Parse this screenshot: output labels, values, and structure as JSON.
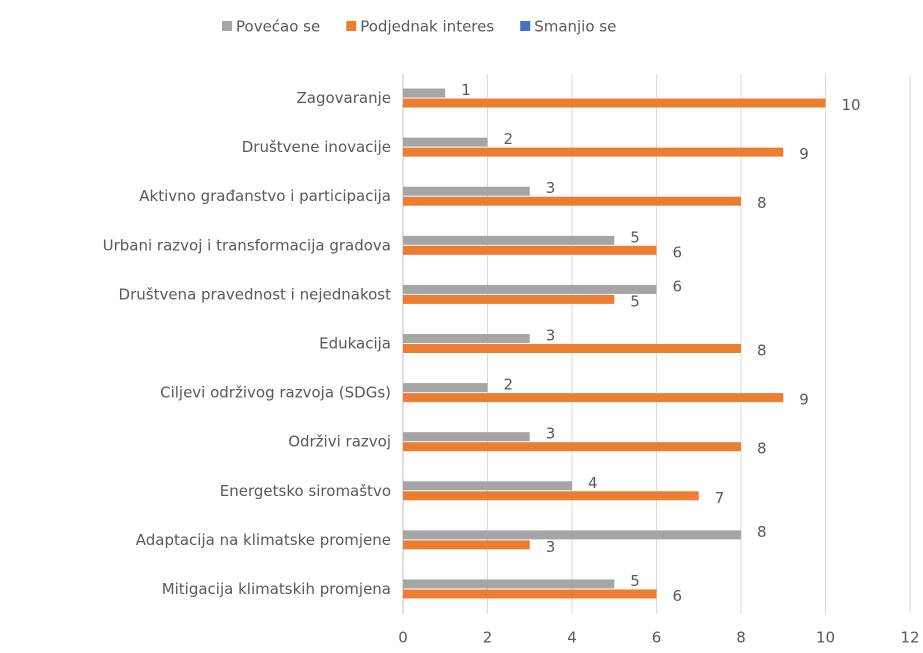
{
  "chart_data": {
    "type": "hbar",
    "categories": [
      "Zagovaranje",
      "Društvene inovacije",
      "Aktivno građanstvo i participacija",
      "Urbani razvoj i transformacija gradova",
      "Društvena pravednost i nejednakost",
      "Edukacija",
      "Ciljevi održivog razvoja (SDGs)",
      "Održivi razvoj",
      "Energetsko siromaštvo",
      "Adaptacija na klimatske promjene",
      "Mitigacija klimatskih promjena"
    ],
    "series": [
      {
        "name": "Povećao se",
        "color": "#a5a5a5",
        "values": [
          1,
          2,
          3,
          5,
          6,
          3,
          2,
          3,
          4,
          8,
          5
        ]
      },
      {
        "name": "Podjednak interes",
        "color": "#ed7d31",
        "values": [
          10,
          9,
          8,
          6,
          5,
          8,
          9,
          8,
          7,
          3,
          6
        ]
      },
      {
        "name": "Smanjio se",
        "color": "#4472c4",
        "values": [
          null,
          null,
          null,
          null,
          null,
          null,
          null,
          null,
          null,
          null,
          null
        ]
      }
    ],
    "xlim": [
      0,
      12
    ],
    "xticks": [
      0,
      2,
      4,
      6,
      8,
      10,
      12
    ],
    "grid": true,
    "legend": "top"
  }
}
